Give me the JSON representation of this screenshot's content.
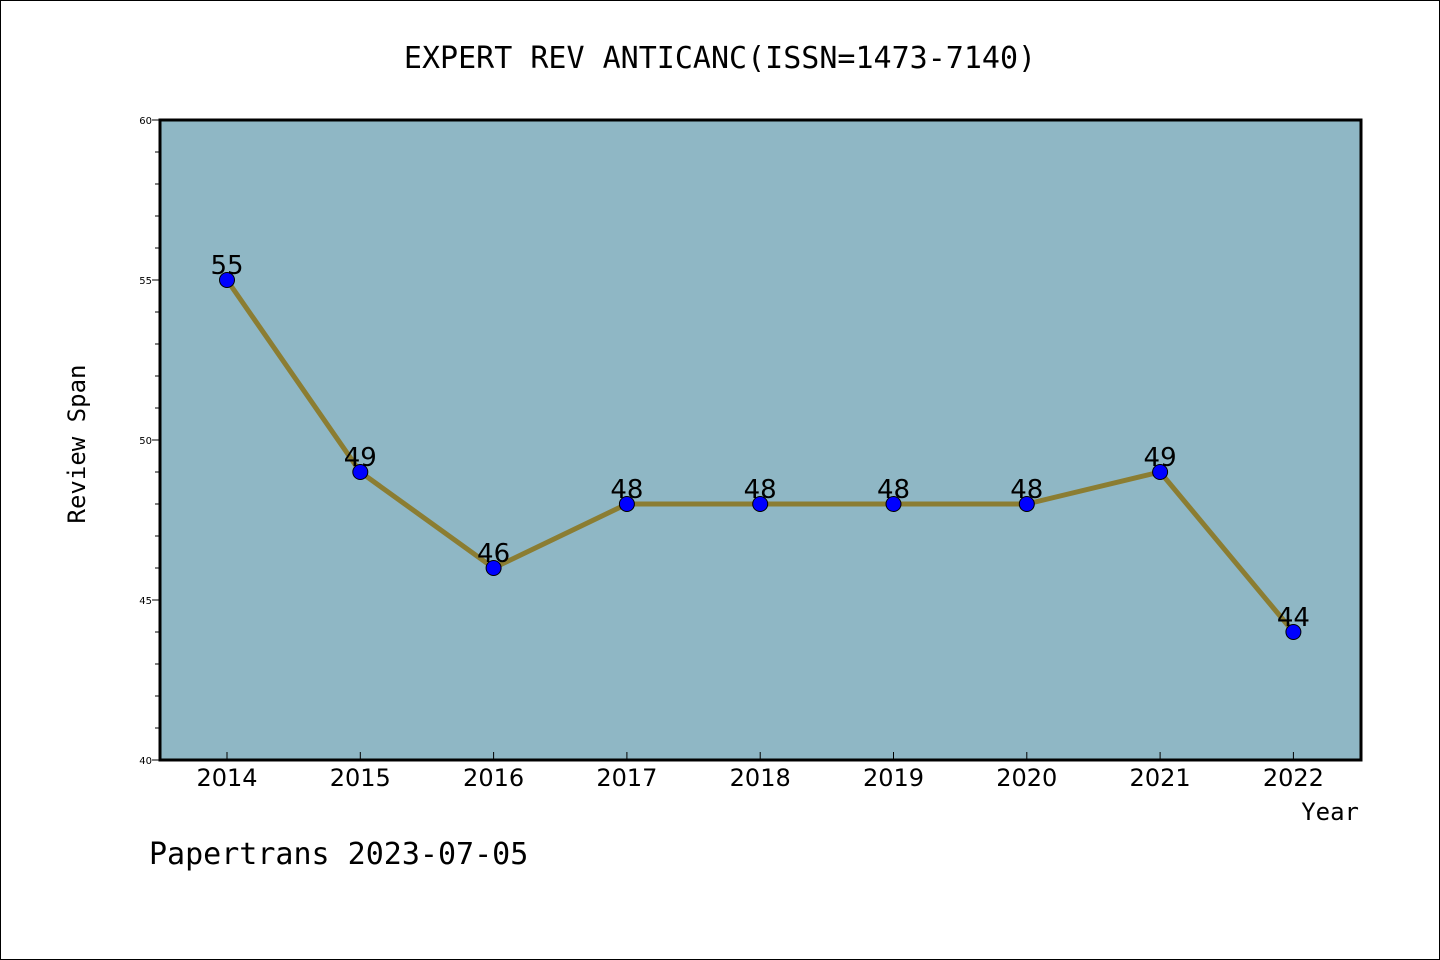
{
  "chart_data": {
    "type": "line",
    "title": "EXPERT REV ANTICANC(ISSN=1473-7140)",
    "xlabel": "Year",
    "ylabel": "Review Span",
    "categories": [
      "2014",
      "2015",
      "2016",
      "2017",
      "2018",
      "2019",
      "2020",
      "2021",
      "2022"
    ],
    "values": [
      55,
      49,
      46,
      48,
      48,
      48,
      48,
      49,
      44
    ],
    "data_labels": [
      "55",
      "49",
      "46",
      "48",
      "48",
      "48",
      "48",
      "49",
      "44"
    ],
    "ylim": [
      40,
      60
    ],
    "yticks": [
      40,
      45,
      50,
      55,
      60
    ],
    "ytick_labels": [
      "40",
      "45",
      "50",
      "55",
      "60"
    ],
    "grid": false,
    "legend": "none",
    "colors": {
      "plot_background": "#8fb7c5",
      "line": "#8b7d32",
      "marker": "#0000ff",
      "marker_edge": "#000000"
    }
  },
  "footer": {
    "credit": "Papertrans 2023-07-05"
  }
}
